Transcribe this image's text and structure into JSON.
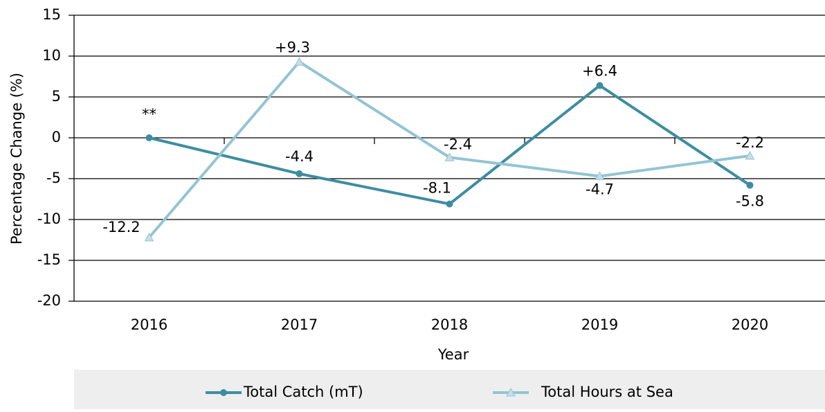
{
  "chart_data": {
    "type": "line",
    "x_label": "Year",
    "y_label": "Percentage Change (%)",
    "categories": [
      "2016",
      "2017",
      "2018",
      "2019",
      "2020"
    ],
    "series": [
      {
        "name": "Total Catch (mT)",
        "color": "#3d8da1",
        "values": [
          0,
          -4.4,
          -8.1,
          6.4,
          -5.8
        ],
        "value_labels": [
          "**",
          "-4.4",
          "-8.1",
          "+6.4",
          "-5.8"
        ]
      },
      {
        "name": "Total Hours at Sea",
        "color": "#93c4d3",
        "values": [
          -12.2,
          9.3,
          -2.4,
          -4.7,
          -2.2
        ],
        "value_labels": [
          "-12.2",
          "+9.3",
          "-2.4",
          "-4.7",
          "-2.2"
        ]
      }
    ],
    "ylim": [
      -20,
      15
    ],
    "yticks": [
      -20,
      -15,
      -10,
      -5,
      0,
      5,
      10,
      15
    ],
    "grid": true,
    "legend": "bottom"
  }
}
